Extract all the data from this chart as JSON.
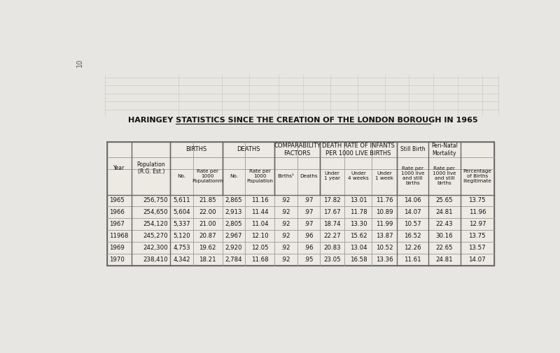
{
  "title": "HARINGEY STATISTICS SINCE THE CREATION OF THE LONDON BOROUGH IN 1965",
  "page_bg": "#e8e6e2",
  "table_bg": "#ede9e3",
  "border_color": "#666666",
  "light_border": "#999999",
  "page_num": "10",
  "col_headers_row1": [
    "",
    "",
    "BIRTHS",
    "",
    "DEATHS",
    "",
    "COMPARABILITY\nFACTORS",
    "",
    "DEATH RATE OF INFANTS\nPER 1000 LIVE BIRTHS",
    "",
    "",
    "Still Birth",
    "Peri-Natal\nMortality",
    ""
  ],
  "col_headers_row2": [
    "Year",
    "Population\n(R.G. Est.)",
    "No.",
    "Rate per\n1000\nPopulationm",
    "No.",
    "Rate per\n1000\nPopulation",
    "Births¹",
    "Deaths",
    "Under\n1 year",
    "Under\n4 weeks",
    "Under\n1 week",
    "Rate per\n1000 live\nand still\nbirths",
    "Rate per\n1000 live\nand still\nbirths",
    "Percentage\nof Births\nIllegitimate"
  ],
  "rows": [
    [
      "1965",
      "256,750",
      "5,611",
      "21.85",
      "2,865",
      "11.16",
      ".92",
      ".97",
      "17.82",
      "13.01",
      "11.76",
      "14.06",
      "25.65",
      "13.75"
    ],
    [
      "1966",
      "254,650",
      "5,604",
      "22.00",
      "2,913",
      "11.44",
      ".92",
      ".97",
      "17.67",
      "11.78",
      "10.89",
      "14.07",
      "24.81",
      "11.96"
    ],
    [
      "1967",
      "254,120",
      "5,337",
      "21.00",
      "2,805",
      "11.04",
      ".92",
      ".97",
      "18.74",
      "13.30",
      "11.99",
      "10.57",
      "22.43",
      "12.97"
    ],
    [
      "11968",
      "245,270",
      "5,120",
      "20.87",
      "2,967",
      "12.10",
      ".92",
      ".96",
      "22.27",
      "15.62",
      "13.87",
      "16.52",
      "30.16",
      "13.75"
    ],
    [
      "1969",
      "242,300",
      "4,753",
      "19.62",
      "2,920",
      "12.05",
      ".92",
      ".96",
      "20.83",
      "13.04",
      "10.52",
      "12.26",
      "22.65",
      "13.57"
    ],
    [
      "1970",
      "238,410",
      "4,342",
      "18.21",
      "2,784",
      "11.68",
      ".92",
      ".95",
      "23.05",
      "16.58",
      "13.36",
      "11.61",
      "24.81",
      "14.07"
    ]
  ],
  "figsize": [
    8.0,
    5.05
  ],
  "dpi": 100,
  "col_widths_rel": [
    5.5,
    8.5,
    5.0,
    6.5,
    5.0,
    6.5,
    5.0,
    5.0,
    5.5,
    6.0,
    5.5,
    7.0,
    7.0,
    7.5
  ]
}
